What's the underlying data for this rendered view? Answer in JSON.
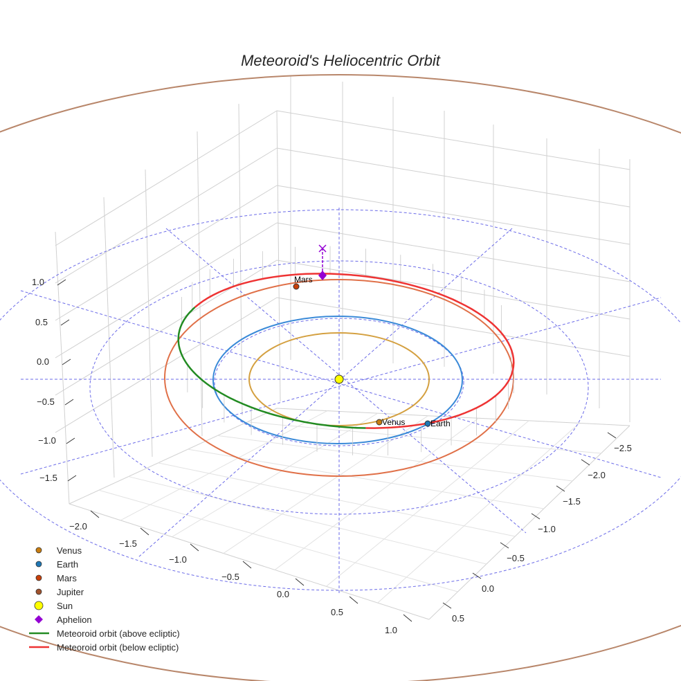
{
  "chart_data": {
    "type": "line3d",
    "title": "Meteoroid's Heliocentric Orbit",
    "xlabel": "",
    "ylabel": "",
    "zlabel": "",
    "x_ticks": [
      "−2.0",
      "−1.5",
      "−1.0",
      "−0.5",
      "0.0",
      "0.5",
      "1.0"
    ],
    "y_ticks": [
      "−2.5",
      "−2.0",
      "−1.5",
      "−1.0",
      "−0.5",
      "0.0",
      "0.5"
    ],
    "z_ticks": [
      "1.0",
      "0.5",
      "0.0",
      "−0.5",
      "−1.0",
      "−1.5"
    ],
    "grid": true,
    "legend_position": "bottom-left",
    "orbits": [
      {
        "name": "Venus",
        "semi_major_au": 0.72,
        "color": "#d4a040"
      },
      {
        "name": "Earth",
        "semi_major_au": 1.0,
        "color": "#3a8ad8"
      },
      {
        "name": "Mars",
        "semi_major_au": 1.52,
        "color": "#e07048"
      },
      {
        "name": "Jupiter",
        "semi_major_au": 5.2,
        "color": "#b8866a"
      }
    ],
    "bodies": [
      {
        "name": "Venus",
        "label": "Venus",
        "color": "#c87d10"
      },
      {
        "name": "Earth",
        "label": "Earth",
        "color": "#1f77b4"
      },
      {
        "name": "Mars",
        "label": "Mars",
        "color": "#c8400a"
      },
      {
        "name": "Sun",
        "label": "",
        "color": "#ffff00"
      }
    ],
    "aphelion": {
      "color": "#9400d3"
    },
    "meteoroid": {
      "above_color": "#228b22",
      "below_color": "#ee3333"
    },
    "legend": [
      {
        "label": "Venus",
        "marker": "circle",
        "color": "#c87d10"
      },
      {
        "label": "Earth",
        "marker": "circle",
        "color": "#1f77b4"
      },
      {
        "label": "Mars",
        "marker": "circle",
        "color": "#c8400a"
      },
      {
        "label": "Jupiter",
        "marker": "circle",
        "color": "#a0522d"
      },
      {
        "label": "Sun",
        "marker": "bigcircle",
        "color": "#ffff00"
      },
      {
        "label": "Aphelion",
        "marker": "diamond",
        "color": "#9400d3"
      },
      {
        "label": "Meteoroid orbit (above ecliptic)",
        "marker": "line",
        "color": "#228b22"
      },
      {
        "label": "Meteoroid orbit (below ecliptic)",
        "marker": "line",
        "color": "#ee3333"
      }
    ]
  }
}
